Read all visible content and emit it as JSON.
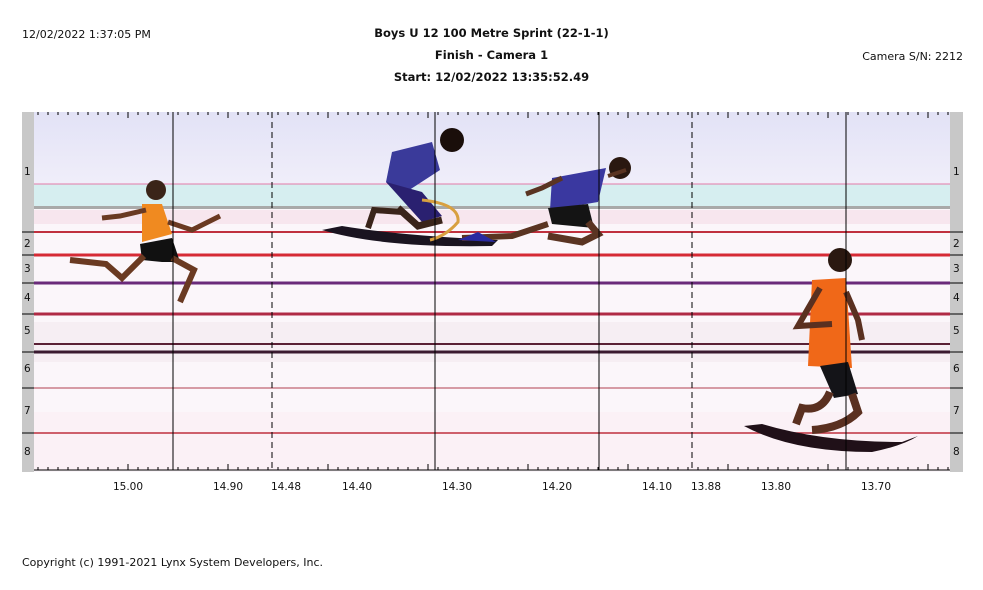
{
  "header": {
    "datetime": "12/02/2022 1:37:05 PM",
    "title": "Boys U 12 100 Metre Sprint (22-1-1)",
    "subtitle": "Finish - Camera 1",
    "start": "Start: 12/02/2022 13:35:52.49",
    "camera_serial": "Camera S/N: 2212"
  },
  "lanes": [
    "1",
    "2",
    "3",
    "4",
    "5",
    "6",
    "7",
    "8"
  ],
  "time_axis": {
    "left_labels": [
      "15.00",
      "14.90"
    ],
    "middle_labels": [
      "14.48",
      "14.40",
      "14.30",
      "14.20",
      "14.10"
    ],
    "right_labels": [
      "13.88",
      "13.80",
      "13.70"
    ]
  },
  "footer": {
    "copyright": "Copyright (c) 1991-2021 Lynx System Developers, Inc."
  },
  "colors": {
    "lane_line_red": "#c0303e",
    "lane_line_purple": "#6a2a7a",
    "sky_tint": "#e6e6f8",
    "lane_bar": "#c8c8c8"
  }
}
